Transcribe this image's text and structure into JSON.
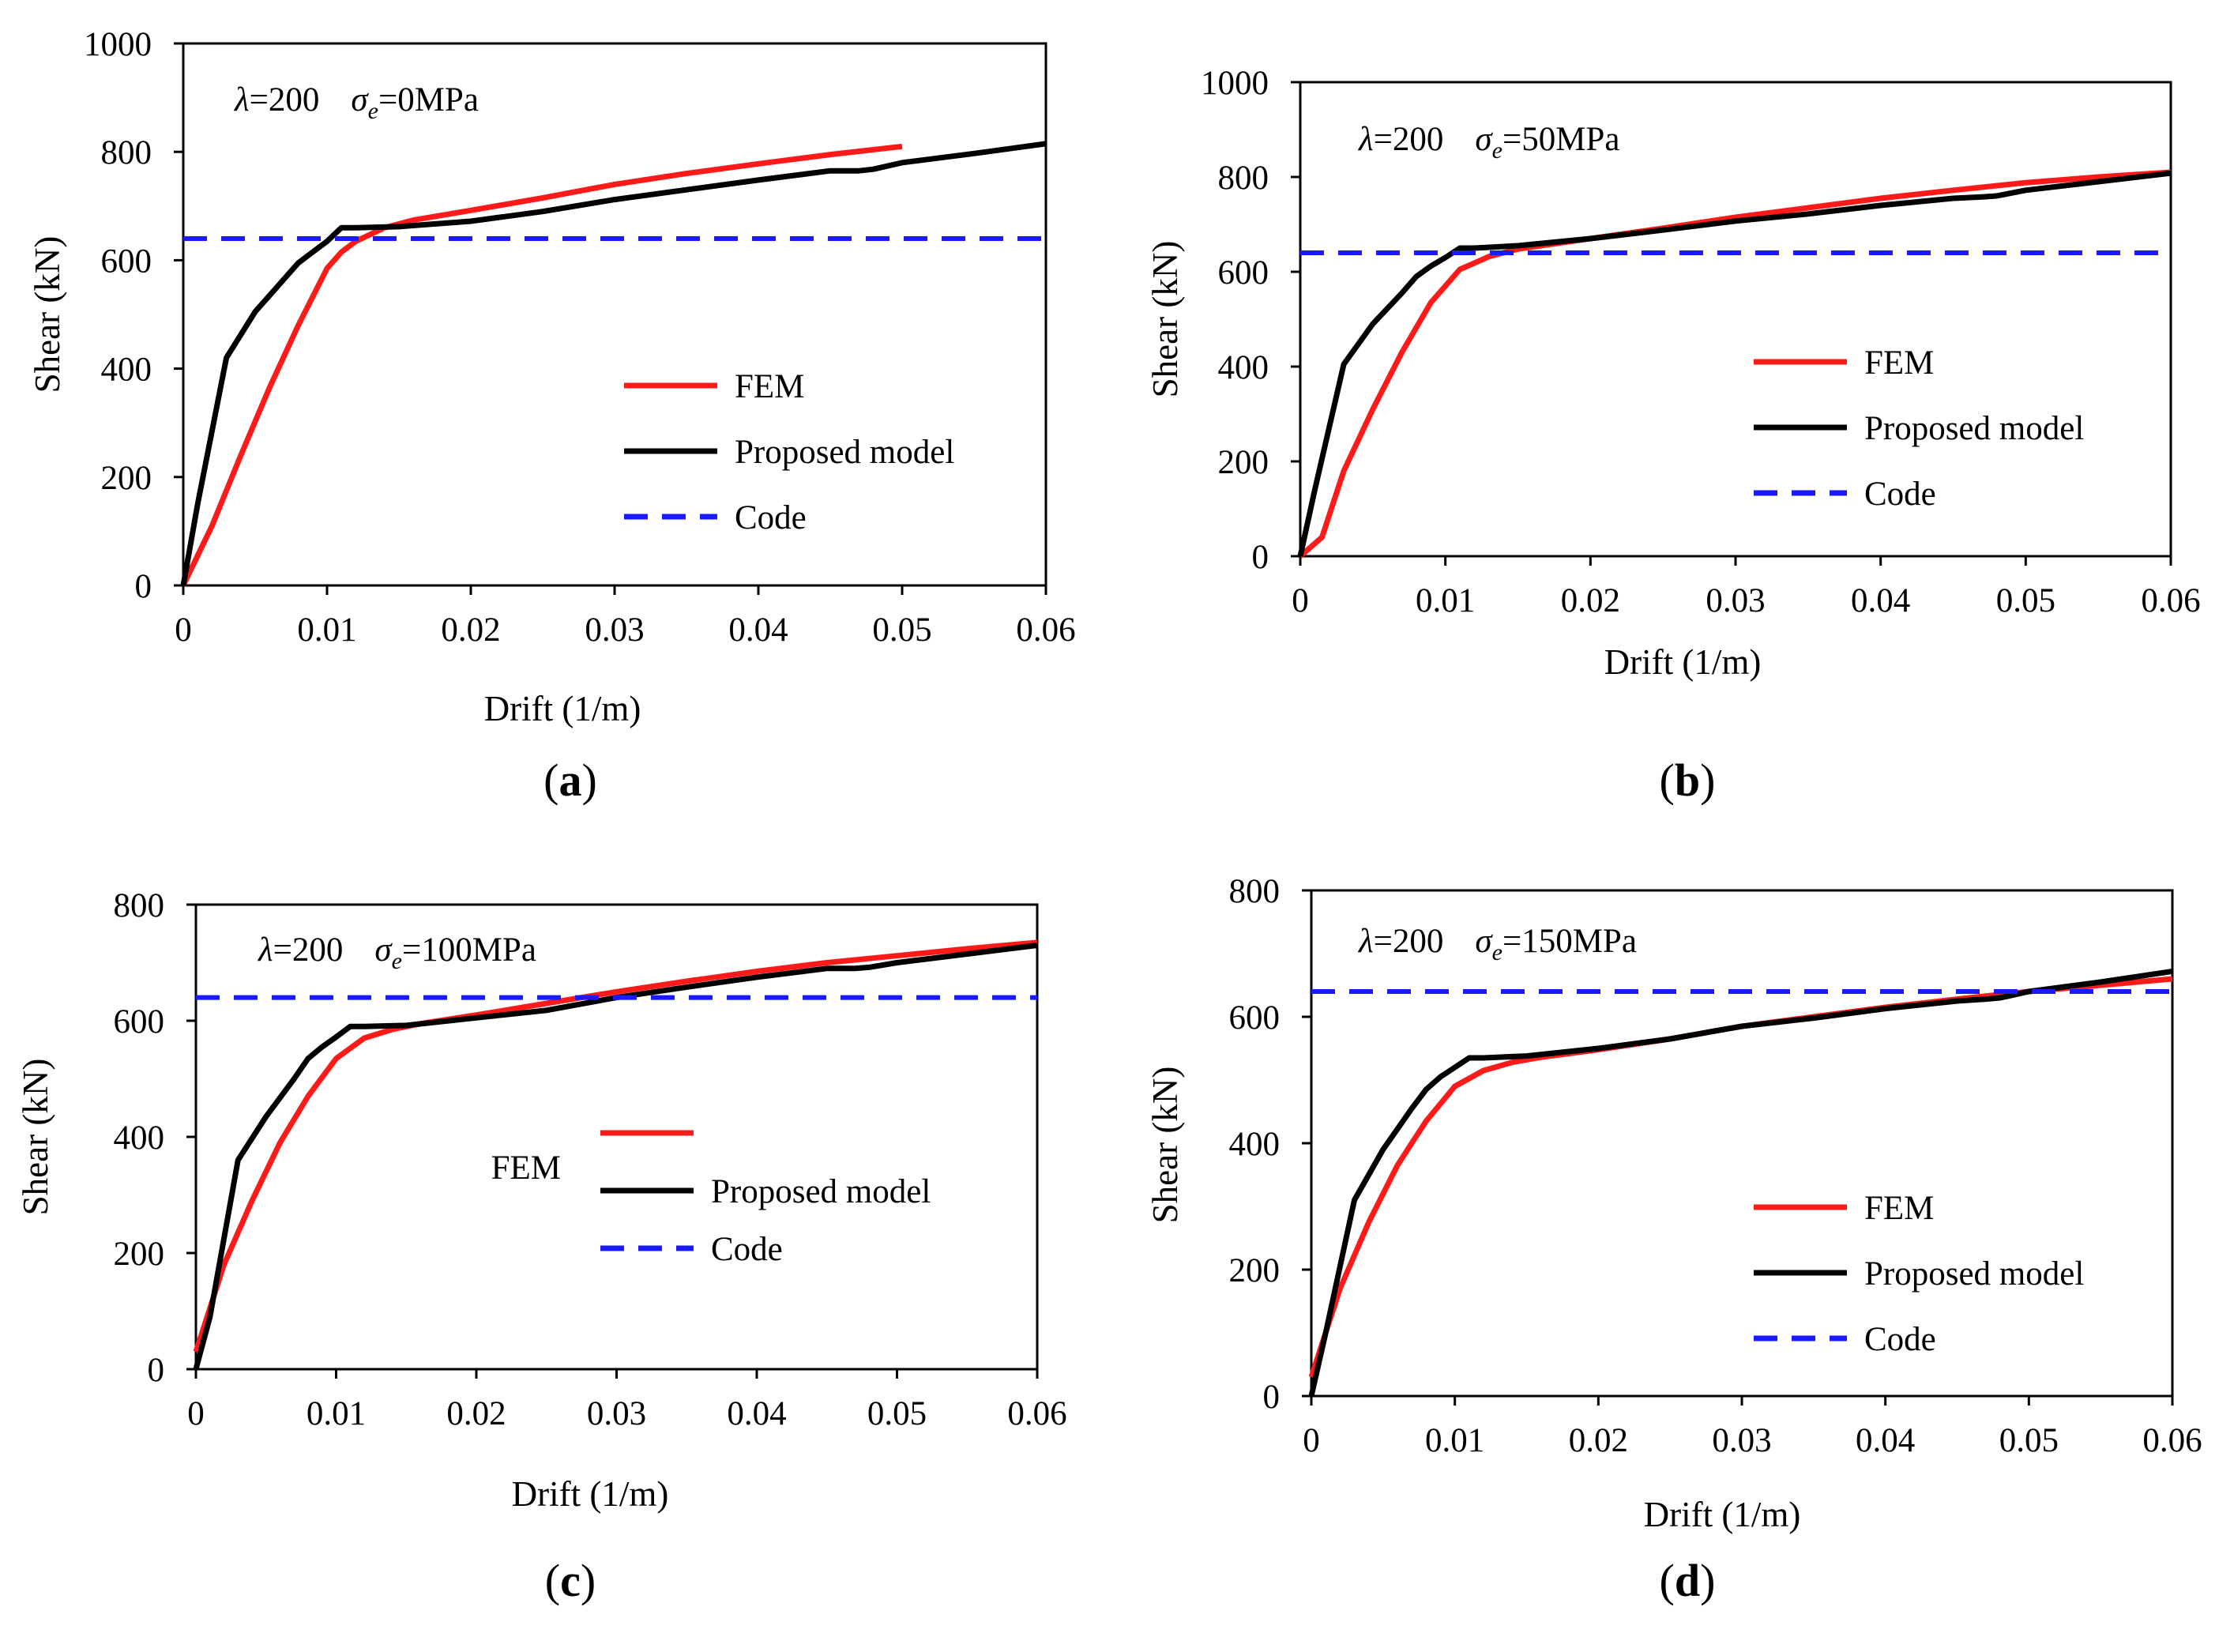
{
  "chart_data": [
    {
      "type": "line",
      "panel": "a",
      "caption": "(a)",
      "annotation": {
        "lambda": "λ=200",
        "sigma": "σ",
        "sub": "e",
        "value": "=0MPa"
      },
      "xlabel": "Drift (1/m)",
      "ylabel": "Shear (kN)",
      "xlim": [
        0,
        0.06
      ],
      "ylim": [
        0,
        1000
      ],
      "xticks": [
        "0",
        "0.01",
        "0.02",
        "0.03",
        "0.04",
        "0.05",
        "0.06"
      ],
      "yticks": [
        "0",
        "200",
        "400",
        "600",
        "800",
        "1000"
      ],
      "legend": [
        "FEM",
        "Proposed model",
        "Code"
      ],
      "series": [
        {
          "name": "FEM",
          "color": "#ff1a1a",
          "dash": false,
          "points": [
            [
              0,
              0
            ],
            [
              0.002,
              110
            ],
            [
              0.004,
              240
            ],
            [
              0.006,
              365
            ],
            [
              0.008,
              480
            ],
            [
              0.01,
              585
            ],
            [
              0.011,
              615
            ],
            [
              0.012,
              635
            ],
            [
              0.014,
              660
            ],
            [
              0.016,
              674
            ],
            [
              0.02,
              692
            ],
            [
              0.025,
              715
            ],
            [
              0.03,
              740
            ],
            [
              0.035,
              760
            ],
            [
              0.04,
              778
            ],
            [
              0.045,
              795
            ],
            [
              0.05,
              810
            ]
          ]
        },
        {
          "name": "Proposed model",
          "color": "#000000",
          "dash": false,
          "points": [
            [
              0,
              0
            ],
            [
              0.001,
              150
            ],
            [
              0.003,
              420
            ],
            [
              0.005,
              505
            ],
            [
              0.007,
              565
            ],
            [
              0.008,
              595
            ],
            [
              0.009,
              615
            ],
            [
              0.01,
              635
            ],
            [
              0.011,
              660
            ],
            [
              0.012,
              660
            ],
            [
              0.015,
              662
            ],
            [
              0.02,
              672
            ],
            [
              0.025,
              690
            ],
            [
              0.03,
              712
            ],
            [
              0.035,
              730
            ],
            [
              0.04,
              748
            ],
            [
              0.045,
              765
            ],
            [
              0.047,
              765
            ],
            [
              0.048,
              768
            ],
            [
              0.05,
              780
            ],
            [
              0.055,
              797
            ],
            [
              0.06,
              815
            ]
          ]
        },
        {
          "name": "Code",
          "color": "#1a1aff",
          "dash": true,
          "points": [
            [
              0,
              640
            ],
            [
              0.06,
              640
            ]
          ]
        }
      ]
    },
    {
      "type": "line",
      "panel": "b",
      "caption": "(b)",
      "annotation": {
        "lambda": "λ=200",
        "sigma": "σ",
        "sub": "e",
        "value": "=50MPa"
      },
      "xlabel": "Drift (1/m)",
      "ylabel": "Shear (kN)",
      "xlim": [
        0,
        0.06
      ],
      "ylim": [
        0,
        1000
      ],
      "xticks": [
        "0",
        "0.01",
        "0.02",
        "0.03",
        "0.04",
        "0.05",
        "0.06"
      ],
      "yticks": [
        "0",
        "200",
        "400",
        "600",
        "800",
        "1000"
      ],
      "legend": [
        "FEM",
        "Proposed model",
        "Code"
      ],
      "series": [
        {
          "name": "FEM",
          "color": "#ff1a1a",
          "dash": false,
          "points": [
            [
              0,
              0
            ],
            [
              0.0015,
              40
            ],
            [
              0.003,
              180
            ],
            [
              0.005,
              310
            ],
            [
              0.007,
              430
            ],
            [
              0.009,
              535
            ],
            [
              0.011,
              605
            ],
            [
              0.013,
              632
            ],
            [
              0.015,
              648
            ],
            [
              0.02,
              670
            ],
            [
              0.025,
              692
            ],
            [
              0.03,
              715
            ],
            [
              0.035,
              735
            ],
            [
              0.04,
              755
            ],
            [
              0.045,
              772
            ],
            [
              0.05,
              788
            ],
            [
              0.055,
              800
            ],
            [
              0.06,
              810
            ]
          ]
        },
        {
          "name": "Proposed model",
          "color": "#000000",
          "dash": false,
          "points": [
            [
              0,
              0
            ],
            [
              0.001,
              140
            ],
            [
              0.003,
              405
            ],
            [
              0.005,
              490
            ],
            [
              0.007,
              555
            ],
            [
              0.008,
              590
            ],
            [
              0.009,
              612
            ],
            [
              0.01,
              630
            ],
            [
              0.011,
              650
            ],
            [
              0.012,
              650
            ],
            [
              0.015,
              655
            ],
            [
              0.02,
              670
            ],
            [
              0.025,
              688
            ],
            [
              0.03,
              707
            ],
            [
              0.035,
              722
            ],
            [
              0.04,
              740
            ],
            [
              0.045,
              755
            ],
            [
              0.047,
              758
            ],
            [
              0.048,
              760
            ],
            [
              0.05,
              772
            ],
            [
              0.055,
              790
            ],
            [
              0.06,
              808
            ]
          ]
        },
        {
          "name": "Code",
          "color": "#1a1aff",
          "dash": true,
          "points": [
            [
              0,
              640
            ],
            [
              0.06,
              640
            ]
          ]
        }
      ]
    },
    {
      "type": "line",
      "panel": "c",
      "caption": "(c)",
      "annotation": {
        "lambda": "λ=200",
        "sigma": "σ",
        "sub": "e",
        "value": "=100MPa"
      },
      "xlabel": "Drift (1/m)",
      "ylabel": "Shear (kN)",
      "xlim": [
        0,
        0.06
      ],
      "ylim": [
        0,
        800
      ],
      "xticks": [
        "0",
        "0.01",
        "0.02",
        "0.03",
        "0.04",
        "0.05",
        "0.06"
      ],
      "yticks": [
        "0",
        "200",
        "400",
        "600",
        "800"
      ],
      "legend": [
        "FEM",
        "Proposed model",
        "Code"
      ],
      "series": [
        {
          "name": "FEM",
          "color": "#ff1a1a",
          "dash": false,
          "points": [
            [
              0,
              30
            ],
            [
              0.002,
              180
            ],
            [
              0.004,
              290
            ],
            [
              0.006,
              390
            ],
            [
              0.008,
              470
            ],
            [
              0.01,
              535
            ],
            [
              0.012,
              570
            ],
            [
              0.014,
              585
            ],
            [
              0.016,
              595
            ],
            [
              0.02,
              610
            ],
            [
              0.025,
              630
            ],
            [
              0.03,
              650
            ],
            [
              0.035,
              668
            ],
            [
              0.04,
              685
            ],
            [
              0.045,
              700
            ],
            [
              0.05,
              712
            ],
            [
              0.055,
              724
            ],
            [
              0.06,
              735
            ]
          ]
        },
        {
          "name": "Proposed model",
          "color": "#000000",
          "dash": false,
          "points": [
            [
              0,
              0
            ],
            [
              0.001,
              90
            ],
            [
              0.003,
              360
            ],
            [
              0.005,
              435
            ],
            [
              0.007,
              500
            ],
            [
              0.008,
              535
            ],
            [
              0.009,
              555
            ],
            [
              0.01,
              572
            ],
            [
              0.011,
              590
            ],
            [
              0.012,
              590
            ],
            [
              0.015,
              592
            ],
            [
              0.02,
              605
            ],
            [
              0.025,
              618
            ],
            [
              0.03,
              640
            ],
            [
              0.035,
              658
            ],
            [
              0.04,
              675
            ],
            [
              0.045,
              690
            ],
            [
              0.047,
              690
            ],
            [
              0.048,
              692
            ],
            [
              0.05,
              700
            ],
            [
              0.055,
              715
            ],
            [
              0.06,
              730
            ]
          ]
        },
        {
          "name": "Code",
          "color": "#1a1aff",
          "dash": true,
          "points": [
            [
              0,
              640
            ],
            [
              0.06,
              640
            ]
          ]
        }
      ]
    },
    {
      "type": "line",
      "panel": "d",
      "caption": "(d)",
      "annotation": {
        "lambda": "λ=200",
        "sigma": "σ",
        "sub": "e",
        "value": "=150MPa"
      },
      "xlabel": "Drift (1/m)",
      "ylabel": "Shear (kN)",
      "xlim": [
        0,
        0.06
      ],
      "ylim": [
        0,
        800
      ],
      "xticks": [
        "0",
        "0.01",
        "0.02",
        "0.03",
        "0.04",
        "0.05",
        "0.06"
      ],
      "yticks": [
        "0",
        "200",
        "400",
        "600",
        "800"
      ],
      "legend": [
        "FEM",
        "Proposed model",
        "Code"
      ],
      "series": [
        {
          "name": "FEM",
          "color": "#ff1a1a",
          "dash": false,
          "points": [
            [
              0,
              30
            ],
            [
              0.002,
              170
            ],
            [
              0.004,
              275
            ],
            [
              0.006,
              365
            ],
            [
              0.008,
              435
            ],
            [
              0.01,
              490
            ],
            [
              0.012,
              515
            ],
            [
              0.014,
              528
            ],
            [
              0.016,
              536
            ],
            [
              0.02,
              548
            ],
            [
              0.025,
              565
            ],
            [
              0.03,
              585
            ],
            [
              0.035,
              600
            ],
            [
              0.04,
              615
            ],
            [
              0.045,
              628
            ],
            [
              0.05,
              640
            ],
            [
              0.055,
              650
            ],
            [
              0.06,
              660
            ]
          ]
        },
        {
          "name": "Proposed model",
          "color": "#000000",
          "dash": false,
          "points": [
            [
              0,
              0
            ],
            [
              0.001,
              100
            ],
            [
              0.003,
              310
            ],
            [
              0.005,
              390
            ],
            [
              0.007,
              455
            ],
            [
              0.008,
              485
            ],
            [
              0.009,
              505
            ],
            [
              0.01,
              520
            ],
            [
              0.011,
              535
            ],
            [
              0.012,
              535
            ],
            [
              0.015,
              538
            ],
            [
              0.02,
              550
            ],
            [
              0.025,
              565
            ],
            [
              0.03,
              585
            ],
            [
              0.035,
              598
            ],
            [
              0.04,
              613
            ],
            [
              0.045,
              625
            ],
            [
              0.047,
              628
            ],
            [
              0.048,
              630
            ],
            [
              0.05,
              640
            ],
            [
              0.055,
              655
            ],
            [
              0.06,
              672
            ]
          ]
        },
        {
          "name": "Code",
          "color": "#1a1aff",
          "dash": true,
          "points": [
            [
              0,
              640
            ],
            [
              0.06,
              640
            ]
          ]
        }
      ]
    }
  ]
}
